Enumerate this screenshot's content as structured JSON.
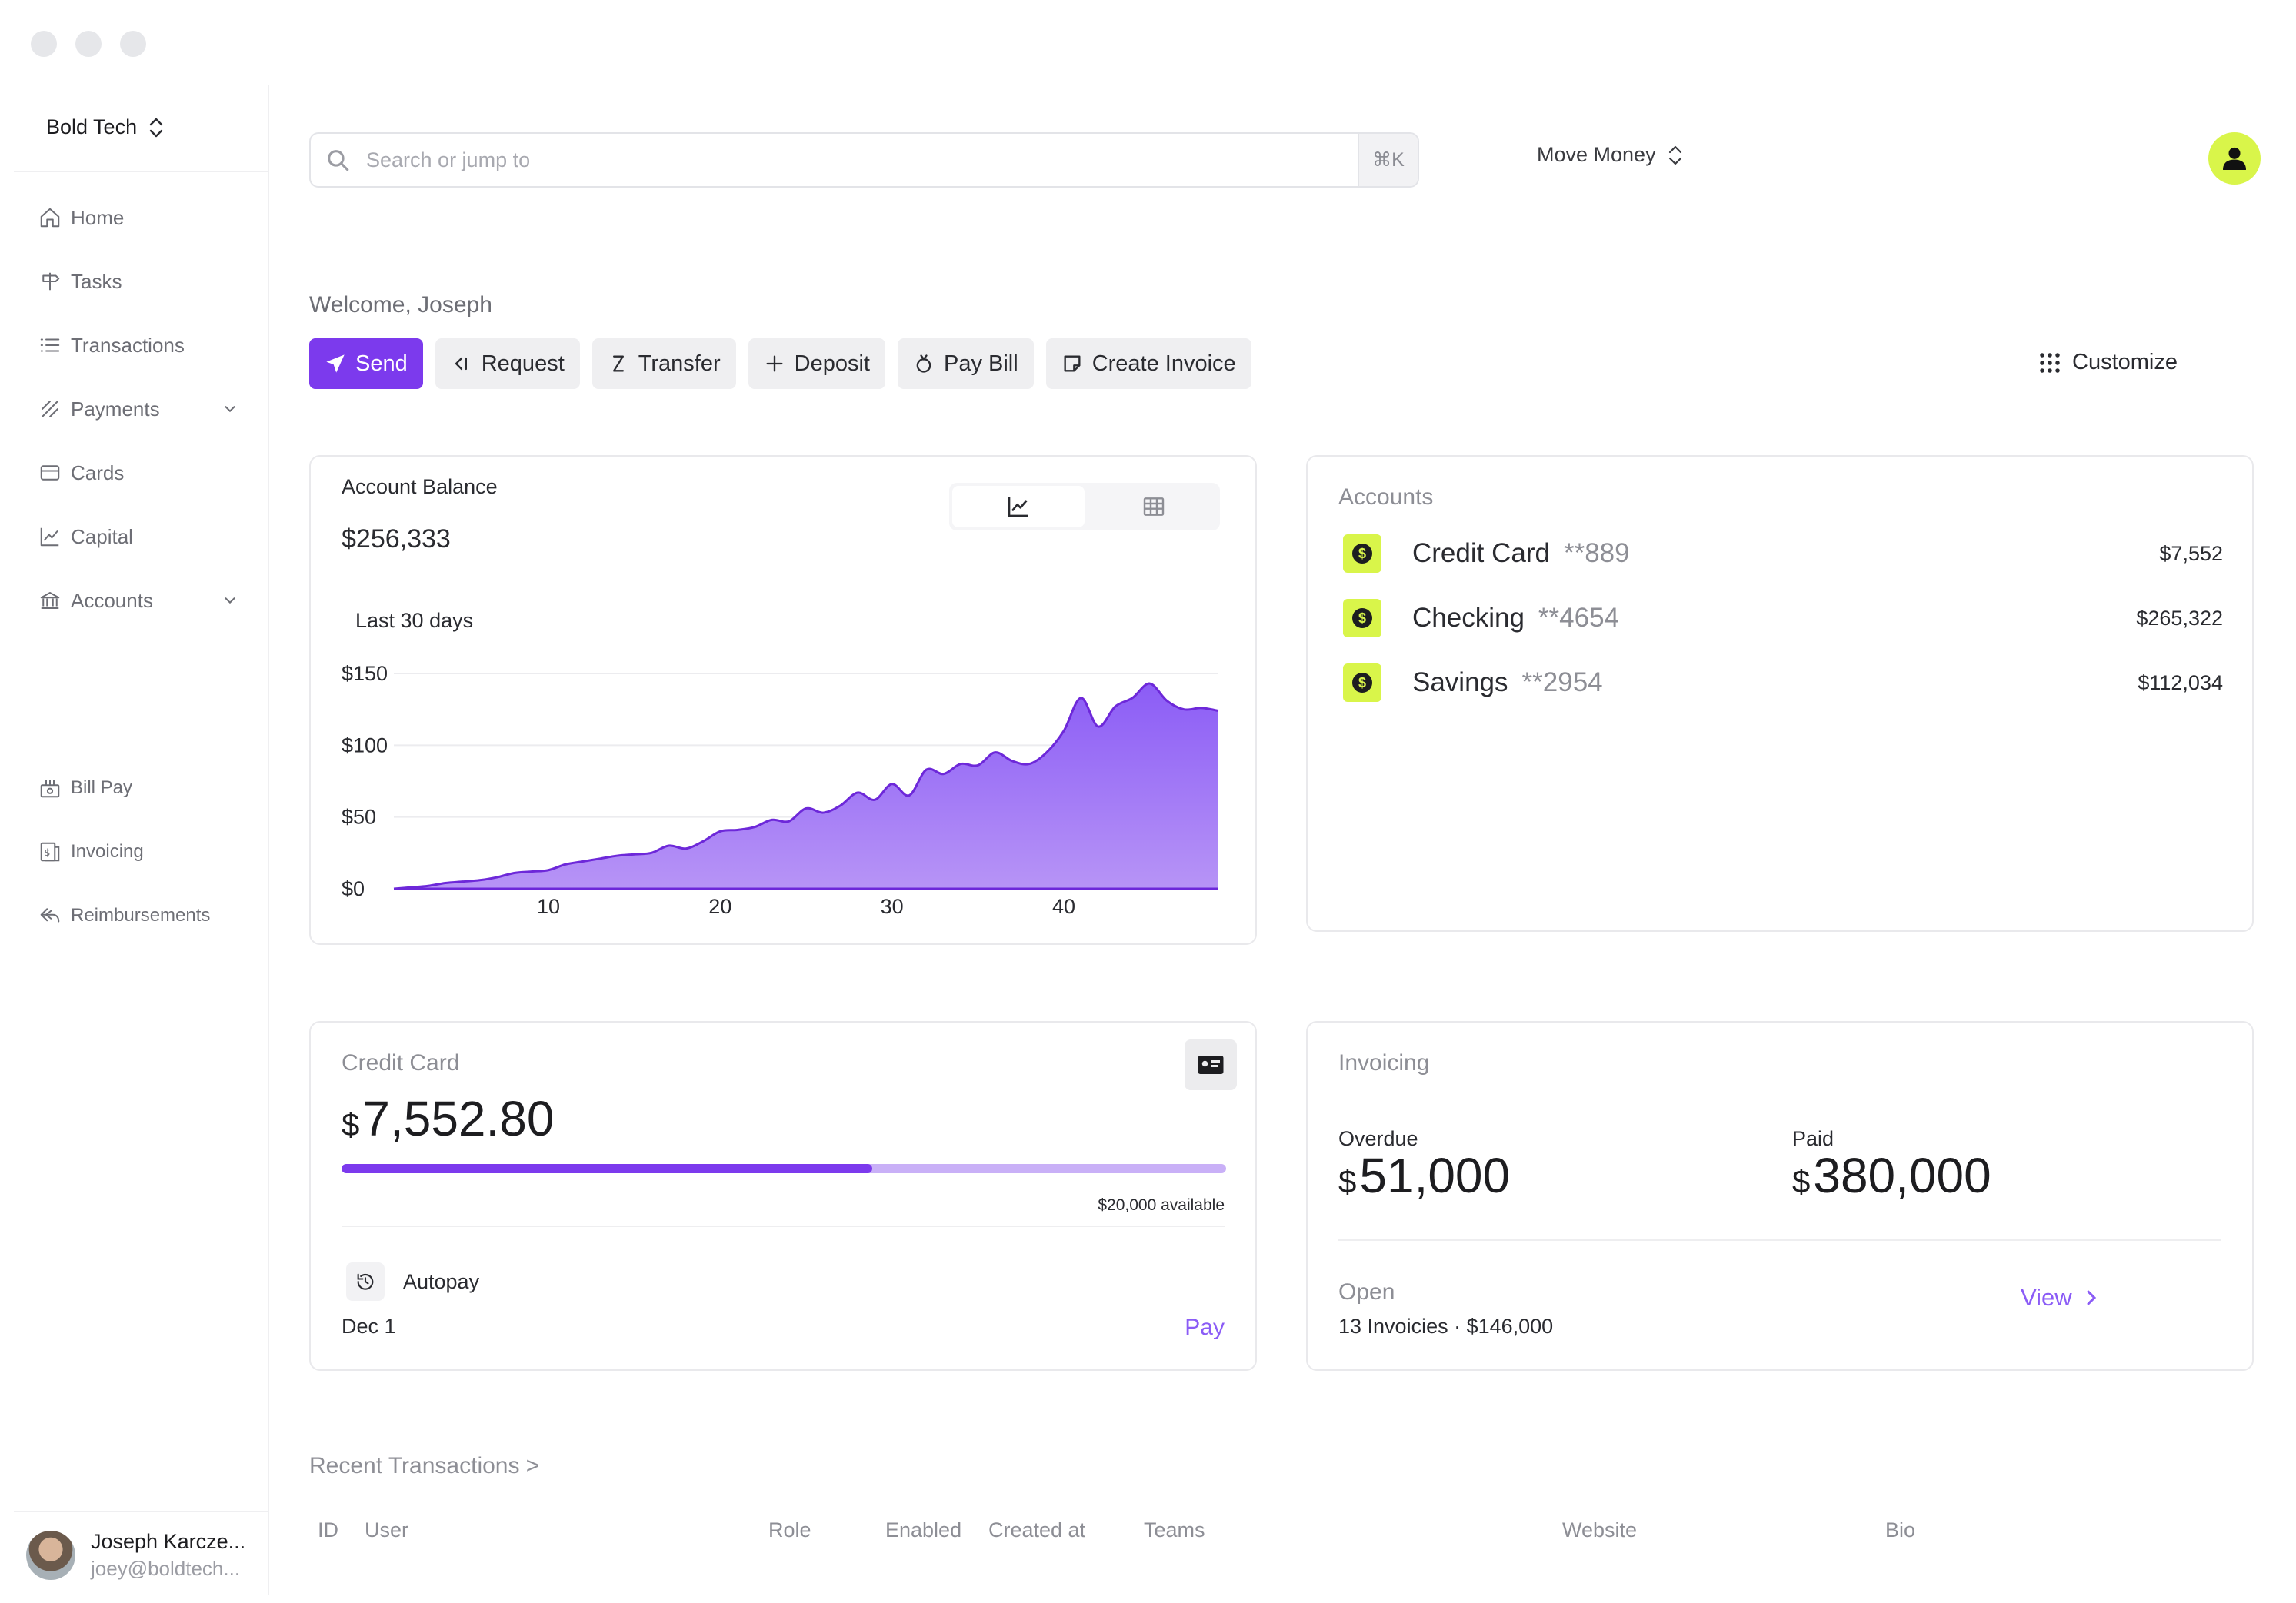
{
  "org": {
    "name": "Bold Tech"
  },
  "nav": {
    "home": "Home",
    "tasks": "Tasks",
    "transactions": "Transactions",
    "payments": "Payments",
    "cards": "Cards",
    "capital": "Capital",
    "accounts": "Accounts",
    "bill_pay": "Bill Pay",
    "invoicing": "Invoicing",
    "reimbursements": "Reimbursements"
  },
  "user": {
    "name": "Joseph Karcze...",
    "email": "joey@boldtech..."
  },
  "search": {
    "placeholder": "Search or jump to",
    "shortcut": "⌘K"
  },
  "top": {
    "move_money": "Move Money"
  },
  "welcome": "Welcome, Joseph",
  "actions": {
    "send": "Send",
    "request": "Request",
    "transfer": "Transfer",
    "deposit": "Deposit",
    "pay_bill": "Pay Bill",
    "create_invoice": "Create Invoice",
    "customize": "Customize"
  },
  "balance": {
    "title": "Account Balance",
    "amount": "$256,333",
    "period": "Last 30 days"
  },
  "chart_data": {
    "type": "area",
    "x": [
      1,
      2,
      3,
      4,
      5,
      6,
      7,
      8,
      9,
      10,
      11,
      12,
      13,
      14,
      15,
      16,
      17,
      18,
      19,
      20,
      21,
      22,
      23,
      24,
      25,
      26,
      27,
      28,
      29,
      30,
      31,
      32,
      33,
      34,
      35,
      36,
      37,
      38,
      39,
      40,
      41,
      42,
      43,
      44,
      45,
      46,
      47,
      48,
      49
    ],
    "values": [
      0,
      1,
      2,
      4,
      5,
      6,
      8,
      11,
      12,
      13,
      17,
      19,
      21,
      23,
      24,
      25,
      30,
      28,
      33,
      40,
      41,
      43,
      48,
      47,
      56,
      53,
      58,
      67,
      62,
      73,
      65,
      83,
      80,
      87,
      86,
      95,
      89,
      87,
      95,
      110,
      133,
      113,
      127,
      133,
      143,
      131,
      125,
      126,
      124
    ],
    "xticks": [
      "10",
      "20",
      "30",
      "40"
    ],
    "yticks": [
      "$0",
      "$50",
      "$100",
      "$150"
    ],
    "ylim": [
      0,
      150
    ],
    "grid": true,
    "color": "#7c3aed"
  },
  "accounts": {
    "title": "Accounts",
    "items": [
      {
        "name": "Credit Card",
        "number": "**889",
        "balance": "$7,552"
      },
      {
        "name": "Checking",
        "number": "**4654",
        "balance": "$265,322"
      },
      {
        "name": "Savings",
        "number": "**2954",
        "balance": "$112,034"
      }
    ]
  },
  "credit": {
    "title": "Credit Card",
    "currency": "$",
    "amount": "7,552.80",
    "used_fraction": 0.6,
    "available": "$20,000 available",
    "autopay": "Autopay",
    "date": "Dec 1",
    "pay": "Pay"
  },
  "invoicing": {
    "title": "Invoicing",
    "overdue_label": "Overdue",
    "overdue_currency": "$",
    "overdue_amount": "51,000",
    "paid_label": "Paid",
    "paid_currency": "$",
    "paid_amount": "380,000",
    "open_label": "Open",
    "open_detail": "13 Invoicies · $146,000",
    "view": "View"
  },
  "recent": {
    "title": "Recent Transactions >",
    "columns": [
      "ID",
      "User",
      "Role",
      "Enabled",
      "Created at",
      "Teams",
      "Website",
      "Bio"
    ]
  },
  "colors": {
    "accent": "#7c3aed",
    "lime": "#d9f54a"
  }
}
